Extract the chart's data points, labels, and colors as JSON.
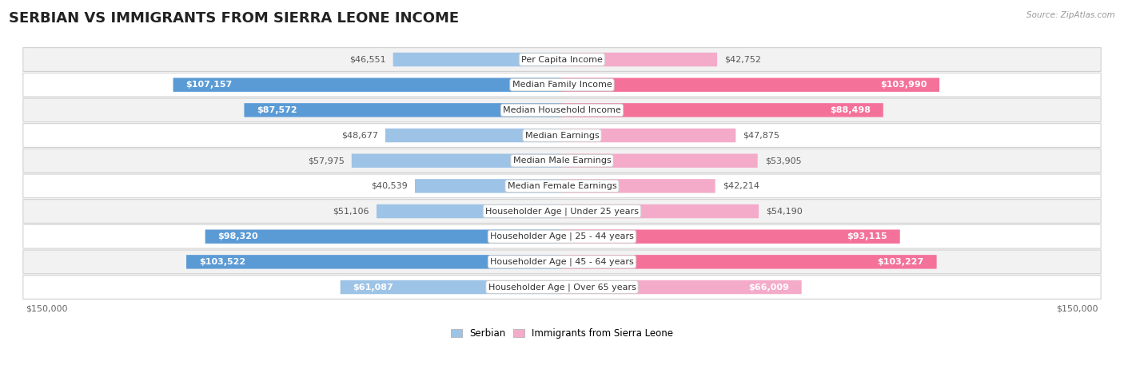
{
  "title": "SERBIAN VS IMMIGRANTS FROM SIERRA LEONE INCOME",
  "source": "Source: ZipAtlas.com",
  "categories": [
    "Per Capita Income",
    "Median Family Income",
    "Median Household Income",
    "Median Earnings",
    "Median Male Earnings",
    "Median Female Earnings",
    "Householder Age | Under 25 years",
    "Householder Age | 25 - 44 years",
    "Householder Age | 45 - 64 years",
    "Householder Age | Over 65 years"
  ],
  "serbian_values": [
    46551,
    107157,
    87572,
    48677,
    57975,
    40539,
    51106,
    98320,
    103522,
    61087
  ],
  "immigrant_values": [
    42752,
    103990,
    88498,
    47875,
    53905,
    42214,
    54190,
    93115,
    103227,
    66009
  ],
  "serbian_color_dark": "#5B9BD5",
  "serbian_color_light": "#9DC3E6",
  "immigrant_color_dark": "#F4719A",
  "immigrant_color_light": "#F4ABCA",
  "serbian_label": "Serbian",
  "immigrant_label": "Immigrants from Sierra Leone",
  "max_value": 150000,
  "x_tick_label_left": "$150,000",
  "x_tick_label_right": "$150,000",
  "background_color": "#ffffff",
  "row_bg_even": "#f2f2f2",
  "row_bg_odd": "#ffffff",
  "title_fontsize": 13,
  "label_fontsize": 8,
  "value_fontsize": 8,
  "dark_threshold": 70000
}
